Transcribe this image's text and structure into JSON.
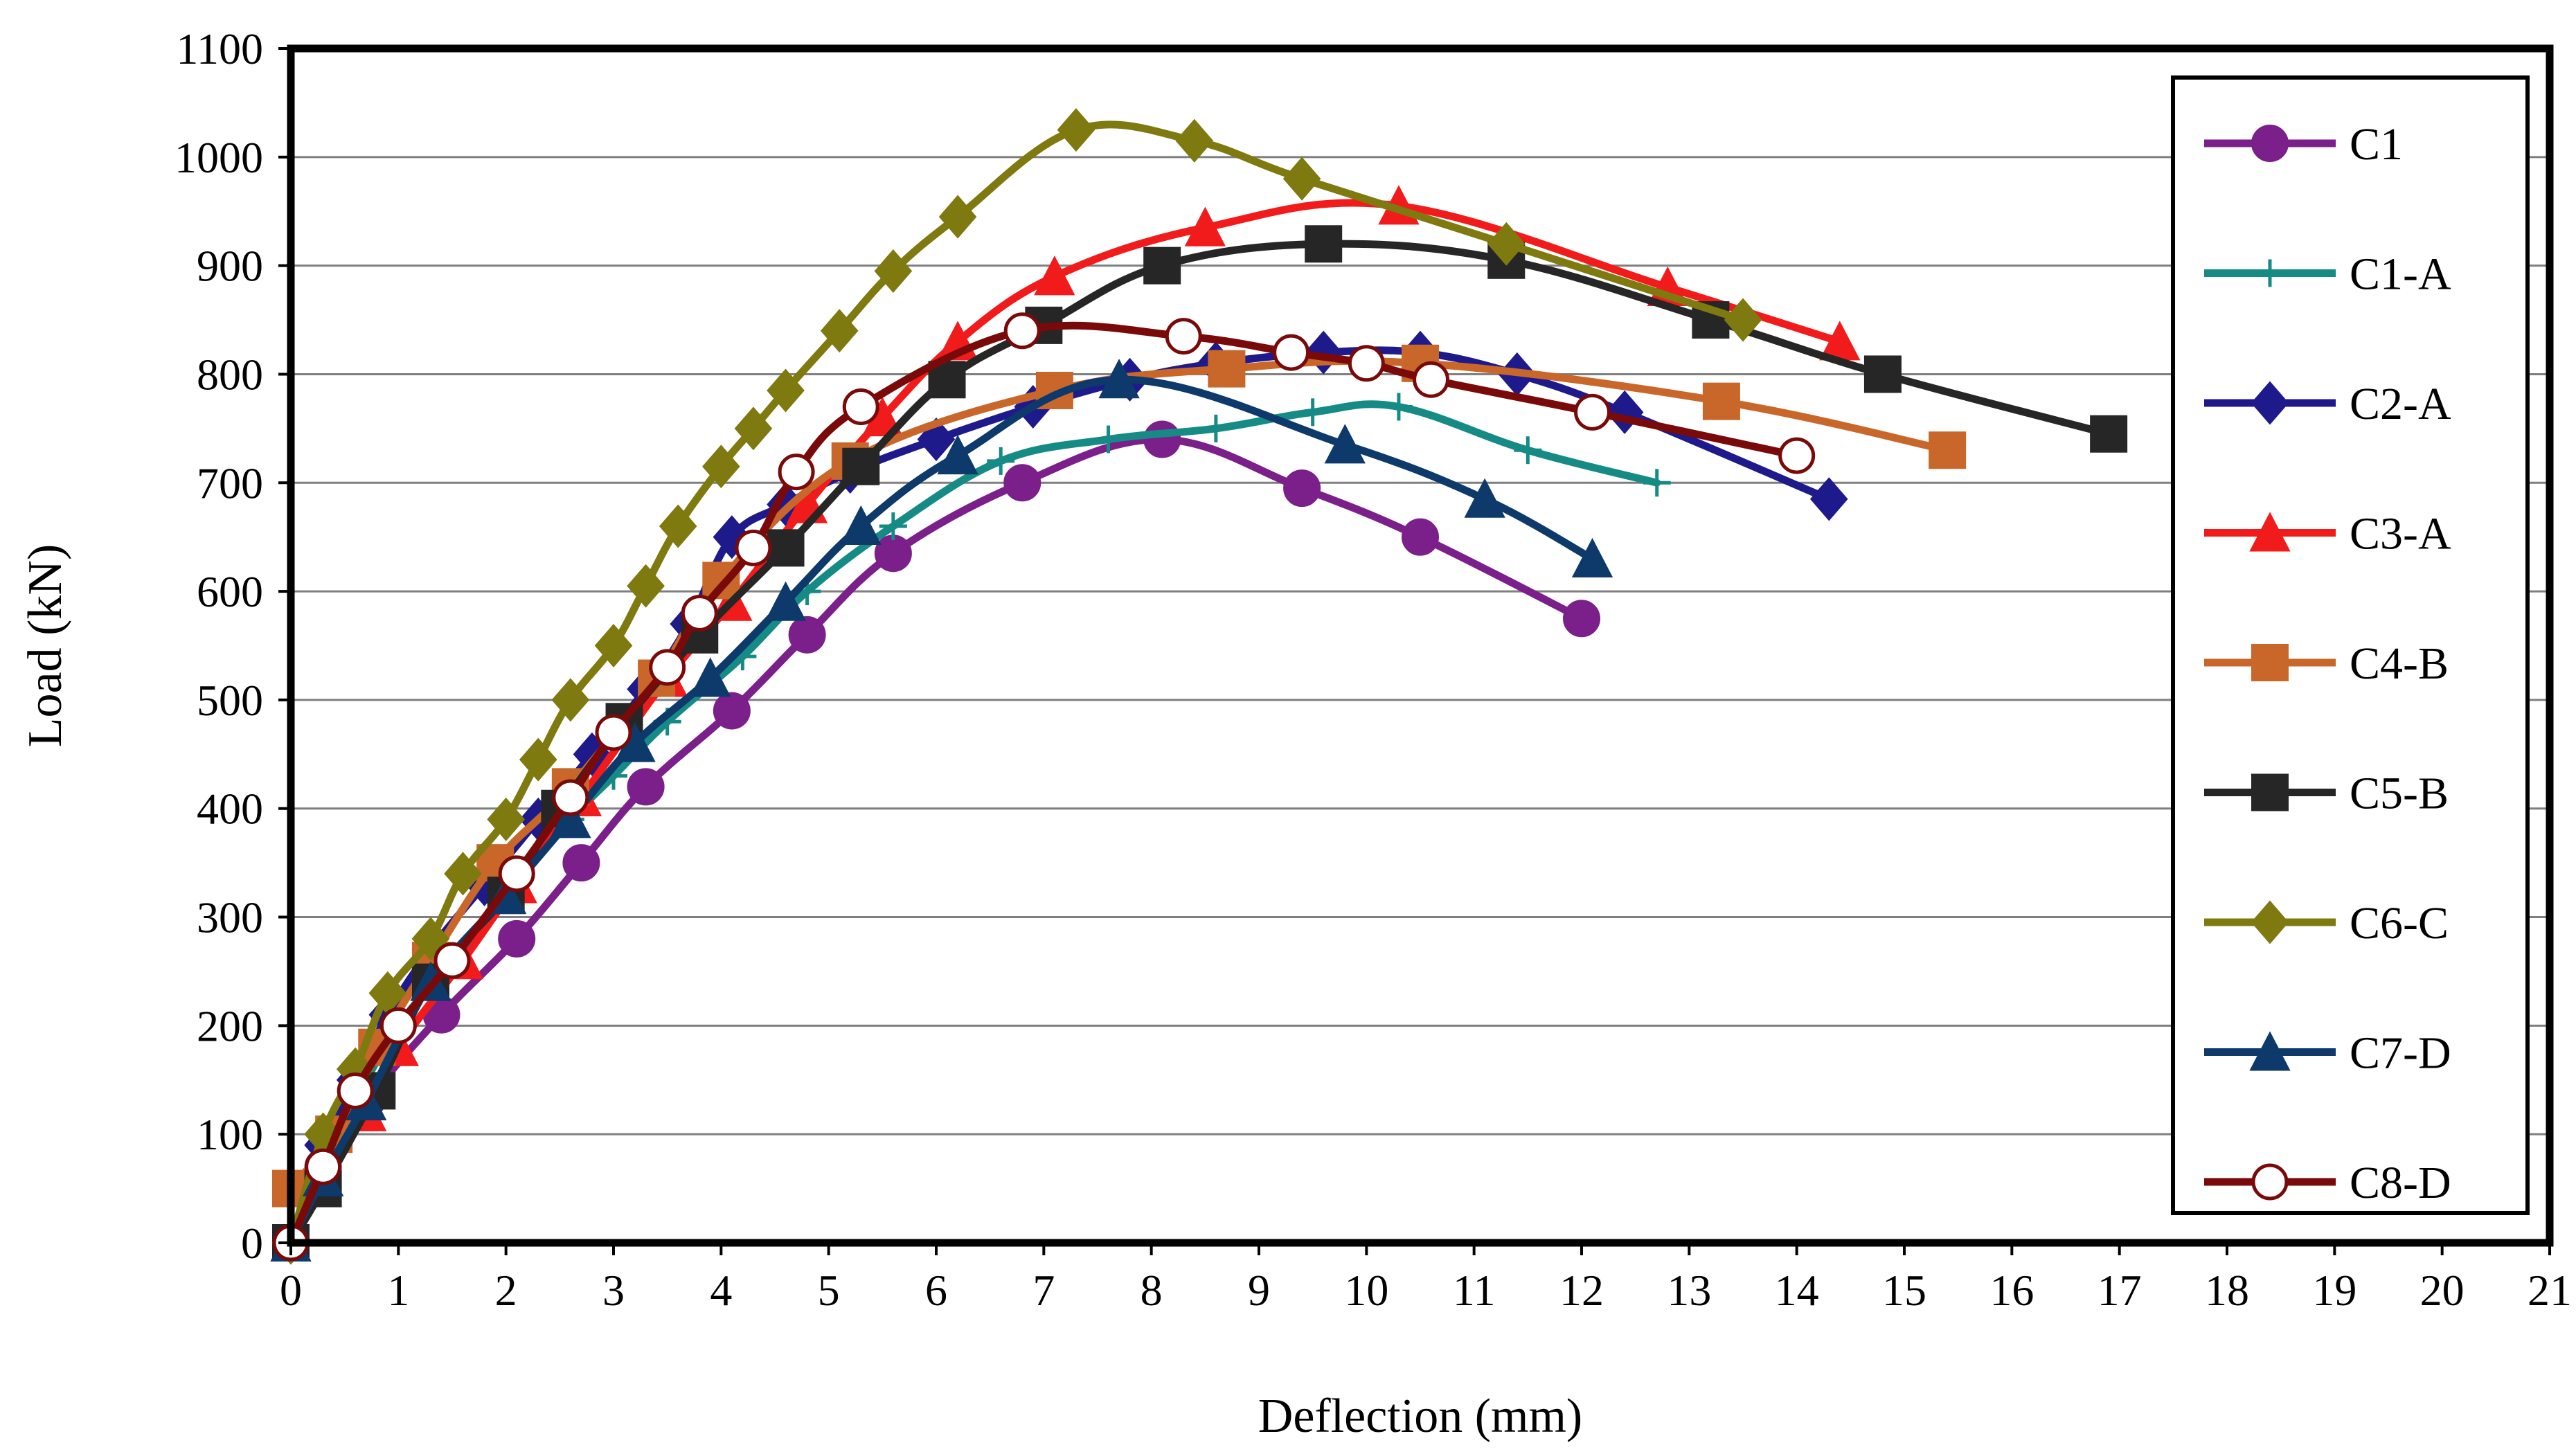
{
  "chart_data": {
    "type": "line",
    "title": "",
    "xlabel": "Deflection (mm)",
    "ylabel": "Load (kN)",
    "xlim": [
      0,
      21
    ],
    "ylim": [
      0,
      1100
    ],
    "xticks": [
      "0",
      "1",
      "2",
      "3",
      "4",
      "5",
      "6",
      "7",
      "8",
      "9",
      "10",
      "11",
      "12",
      "13",
      "14",
      "15",
      "16",
      "17",
      "18",
      "19",
      "20",
      "21"
    ],
    "yticks": [
      "0",
      "100",
      "200",
      "300",
      "400",
      "500",
      "600",
      "700",
      "800",
      "900",
      "1000",
      "1100"
    ],
    "grid": "horizontal",
    "legend_position": "right",
    "series": [
      {
        "name": "C1",
        "color": "#7B1F8A",
        "marker": "circle",
        "x": [
          0,
          0.3,
          0.7,
          1.4,
          2.1,
          2.7,
          3.3,
          4.1,
          4.8,
          5.6,
          6.8,
          8.1,
          9.4,
          10.5,
          12.0
        ],
        "y": [
          0,
          70,
          130,
          210,
          280,
          350,
          420,
          490,
          560,
          635,
          700,
          740,
          695,
          650,
          575
        ]
      },
      {
        "name": "C1-A",
        "color": "#168B86",
        "marker": "plus",
        "x": [
          0,
          0.3,
          0.7,
          1.0,
          1.5,
          2.0,
          2.6,
          3.0,
          3.5,
          4.2,
          4.8,
          5.6,
          6.6,
          7.6,
          8.6,
          9.5,
          10.3,
          11.5,
          12.7
        ],
        "y": [
          0,
          80,
          150,
          200,
          260,
          320,
          390,
          430,
          480,
          540,
          600,
          660,
          720,
          740,
          750,
          765,
          770,
          730,
          700
        ]
      },
      {
        "name": "C2-A",
        "color": "#1F1A8C",
        "marker": "diamond",
        "x": [
          0,
          0.3,
          0.6,
          0.9,
          1.3,
          1.8,
          2.3,
          2.8,
          3.3,
          3.7,
          4.1,
          4.6,
          5.2,
          6.0,
          6.9,
          7.8,
          8.6,
          9.6,
          10.5,
          11.4,
          12.4,
          14.3
        ],
        "y": [
          0,
          90,
          150,
          210,
          270,
          330,
          390,
          450,
          510,
          570,
          650,
          680,
          710,
          740,
          770,
          795,
          810,
          820,
          820,
          800,
          765,
          685
        ]
      },
      {
        "name": "C3-A",
        "color": "#F21B1B",
        "marker": "triangle",
        "x": [
          0,
          0.3,
          0.7,
          1.0,
          1.6,
          2.1,
          2.7,
          3.5,
          4.1,
          4.8,
          5.5,
          6.2,
          7.1,
          8.5,
          10.3,
          12.8,
          14.4
        ],
        "y": [
          0,
          60,
          120,
          180,
          260,
          330,
          410,
          520,
          590,
          680,
          760,
          830,
          890,
          935,
          955,
          880,
          830
        ]
      },
      {
        "name": "C4-B",
        "color": "#C9672A",
        "marker": "square",
        "x": [
          0,
          0.4,
          0.8,
          1.3,
          1.9,
          2.6,
          3.4,
          4.0,
          5.2,
          7.1,
          8.7,
          10.5,
          13.3,
          15.4
        ],
        "y": [
          50,
          100,
          180,
          260,
          350,
          420,
          520,
          610,
          720,
          785,
          805,
          810,
          775,
          730
        ]
      },
      {
        "name": "C5-B",
        "color": "#262626",
        "marker": "square",
        "x": [
          0,
          0.3,
          0.8,
          1.3,
          2.0,
          2.5,
          3.1,
          3.8,
          4.6,
          5.3,
          6.1,
          7.0,
          8.1,
          9.6,
          11.3,
          13.2,
          14.8,
          16.9
        ],
        "y": [
          0,
          50,
          140,
          240,
          320,
          400,
          480,
          560,
          640,
          715,
          795,
          845,
          900,
          920,
          905,
          850,
          800,
          745
        ]
      },
      {
        "name": "C6-C",
        "color": "#7E7A0F",
        "marker": "diamond",
        "x": [
          0,
          0.3,
          0.6,
          0.9,
          1.3,
          1.6,
          2.0,
          2.3,
          2.6,
          3.0,
          3.3,
          3.6,
          4.0,
          4.3,
          4.6,
          5.1,
          5.6,
          6.2,
          7.3,
          8.4,
          9.4,
          11.3,
          13.5
        ],
        "y": [
          0,
          100,
          160,
          230,
          280,
          340,
          390,
          445,
          500,
          550,
          605,
          660,
          715,
          750,
          785,
          840,
          895,
          945,
          1025,
          1015,
          980,
          920,
          850
        ]
      },
      {
        "name": "C7-D",
        "color": "#0D3A6B",
        "marker": "triangle",
        "x": [
          0,
          0.3,
          0.7,
          1.3,
          2.0,
          2.6,
          3.2,
          3.9,
          4.6,
          5.3,
          6.2,
          7.7,
          9.8,
          11.1,
          12.1
        ],
        "y": [
          0,
          60,
          130,
          240,
          320,
          390,
          460,
          520,
          590,
          660,
          725,
          795,
          735,
          685,
          630
        ]
      },
      {
        "name": "C8-D",
        "color": "#7A0A0A",
        "marker": "circle-open",
        "x": [
          0,
          0.3,
          0.6,
          1.0,
          1.5,
          2.1,
          2.6,
          3.0,
          3.5,
          3.8,
          4.3,
          4.7,
          5.3,
          6.8,
          8.3,
          9.3,
          10.0,
          10.6,
          12.1,
          14.0
        ],
        "y": [
          0,
          70,
          140,
          200,
          260,
          340,
          410,
          470,
          530,
          580,
          640,
          710,
          770,
          840,
          835,
          820,
          810,
          795,
          765,
          725
        ]
      }
    ]
  }
}
